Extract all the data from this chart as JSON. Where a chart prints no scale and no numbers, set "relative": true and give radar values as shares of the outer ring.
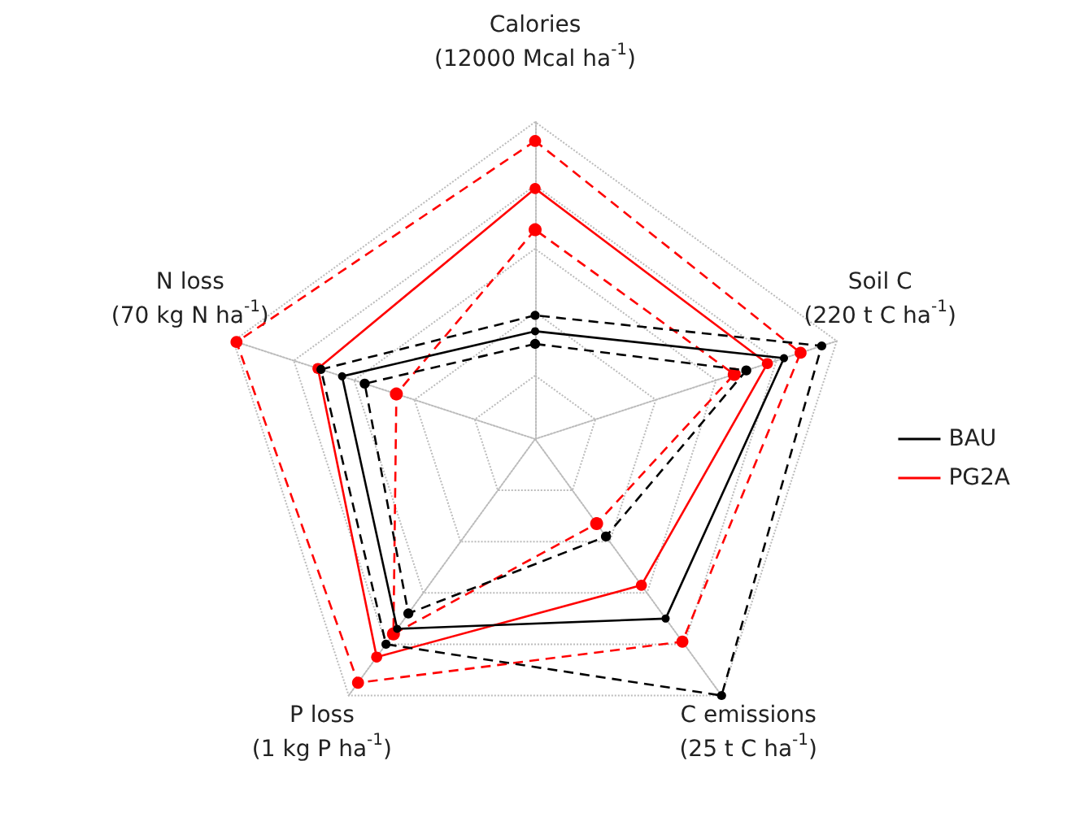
{
  "chart_data": {
    "type": "radar",
    "relative": true,
    "categories": [
      "Calories\n(12000 Mcal ha$^{-1}$)",
      "Soil C\n(220 t C ha$^{-1}$)",
      "C emissions\n(25 t C ha$^{-1}$)",
      "P loss\n(1 kg P ha$^{-1}$)",
      "N loss\n(70 kg N ha$^{-1}$)"
    ],
    "marker": "circle",
    "grid": true,
    "legend": "right",
    "series": [
      {
        "name": "BAU",
        "color": "#000000",
        "line_style": "solid",
        "values": [
          0.34,
          0.825,
          0.7,
          0.74,
          0.64
        ]
      },
      {
        "color": "#000000",
        "line_style": "dashed",
        "values": [
          0.39,
          0.95,
          1.0,
          0.8,
          0.71
        ]
      },
      {
        "color": "#000000",
        "line_style": "dashed",
        "values": [
          0.3,
          0.7,
          0.38,
          0.68,
          0.565
        ]
      },
      {
        "name": "PG2A",
        "color": "#ff0000",
        "line_style": "solid",
        "values": [
          0.79,
          0.77,
          0.57,
          0.85,
          0.72
        ]
      },
      {
        "color": "#ff0000",
        "line_style": "dashed",
        "values": [
          0.94,
          0.88,
          0.79,
          0.95,
          0.99
        ]
      },
      {
        "color": "#ff0000",
        "line_style": "dashed",
        "values": [
          0.66,
          0.66,
          0.33,
          0.76,
          0.46
        ]
      }
    ]
  }
}
